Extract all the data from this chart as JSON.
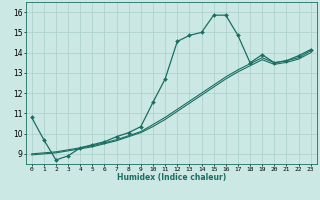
{
  "xlabel": "Humidex (Indice chaleur)",
  "ylabel": "",
  "bg_color": "#cce8e4",
  "grid_color": "#aacfca",
  "line_color": "#1a6e62",
  "xlim": [
    -0.5,
    23.5
  ],
  "ylim": [
    8.5,
    16.5
  ],
  "xticks": [
    0,
    1,
    2,
    3,
    4,
    5,
    6,
    7,
    8,
    9,
    10,
    11,
    12,
    13,
    14,
    15,
    16,
    17,
    18,
    19,
    20,
    21,
    22,
    23
  ],
  "yticks": [
    9,
    10,
    11,
    12,
    13,
    14,
    15,
    16
  ],
  "series1_x": [
    0,
    1,
    2,
    3,
    4,
    5,
    6,
    7,
    8,
    9,
    10,
    11,
    12,
    13,
    14,
    15,
    16,
    17,
    18,
    19,
    20,
    21,
    22,
    23
  ],
  "series1_y": [
    10.8,
    9.7,
    8.7,
    8.9,
    9.3,
    9.45,
    9.6,
    9.85,
    10.05,
    10.35,
    11.55,
    12.7,
    14.55,
    14.85,
    15.0,
    15.85,
    15.85,
    14.85,
    13.5,
    13.9,
    13.5,
    13.6,
    13.85,
    14.15
  ],
  "series2_x": [
    0,
    1,
    2,
    3,
    4,
    5,
    6,
    7,
    8,
    9,
    10,
    11,
    12,
    13,
    14,
    15,
    16,
    17,
    18,
    19,
    20,
    21,
    22,
    23
  ],
  "series2_y": [
    9.0,
    9.05,
    9.1,
    9.2,
    9.3,
    9.4,
    9.55,
    9.7,
    9.9,
    10.1,
    10.45,
    10.8,
    11.2,
    11.6,
    12.0,
    12.4,
    12.8,
    13.15,
    13.45,
    13.75,
    13.5,
    13.6,
    13.75,
    14.1
  ],
  "series3_x": [
    0,
    1,
    2,
    3,
    4,
    5,
    6,
    7,
    8,
    9,
    10,
    11,
    12,
    13,
    14,
    15,
    16,
    17,
    18,
    19,
    20,
    21,
    22,
    23
  ],
  "series3_y": [
    8.95,
    9.0,
    9.05,
    9.15,
    9.25,
    9.35,
    9.5,
    9.65,
    9.85,
    10.05,
    10.35,
    10.7,
    11.1,
    11.5,
    11.9,
    12.3,
    12.7,
    13.05,
    13.35,
    13.65,
    13.42,
    13.52,
    13.68,
    14.0
  ]
}
